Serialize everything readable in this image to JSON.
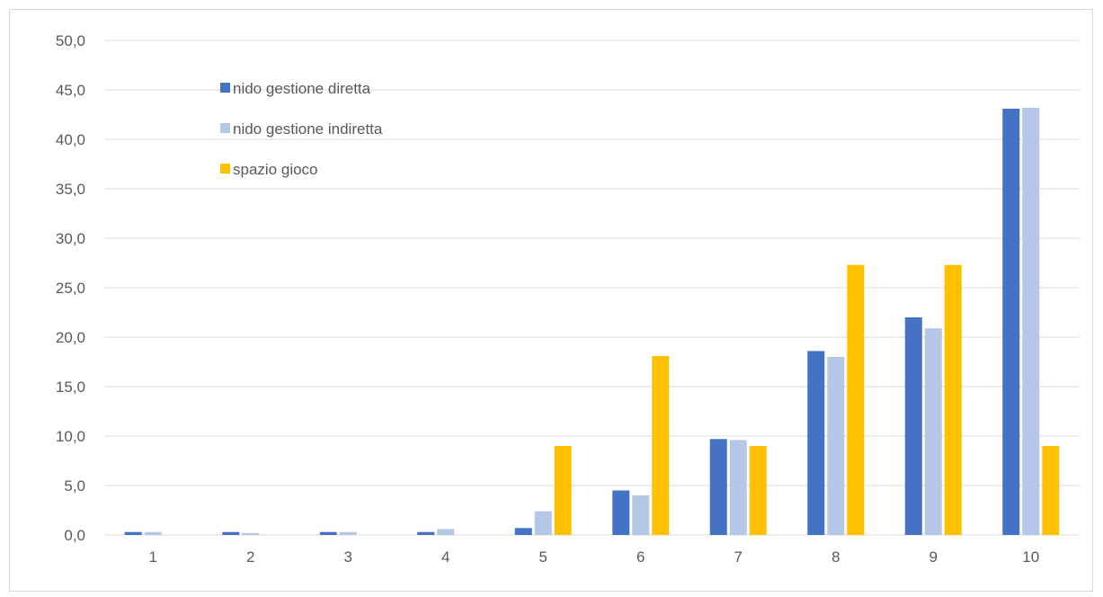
{
  "chart_data": {
    "type": "bar",
    "title": "",
    "xlabel": "",
    "ylabel": "",
    "categories": [
      "1",
      "2",
      "3",
      "4",
      "5",
      "6",
      "7",
      "8",
      "9",
      "10"
    ],
    "ylim": [
      0,
      50
    ],
    "yticks": [
      "0,0",
      "5,0",
      "10,0",
      "15,0",
      "20,0",
      "25,0",
      "30,0",
      "35,0",
      "40,0",
      "45,0",
      "50,0"
    ],
    "grid": true,
    "legend_position": "top-left",
    "series": [
      {
        "name": "nido gestione diretta",
        "color": "#4472c4",
        "values": [
          0.3,
          0.3,
          0.3,
          0.3,
          0.7,
          4.5,
          9.7,
          18.6,
          22.0,
          43.1
        ]
      },
      {
        "name": "nido gestione indiretta",
        "color": "#b4c7e7",
        "values": [
          0.3,
          0.2,
          0.3,
          0.6,
          2.4,
          4.0,
          9.6,
          18.0,
          20.9,
          43.2
        ]
      },
      {
        "name": "spazio gioco",
        "color": "#ffc000",
        "values": [
          0.0,
          0.0,
          0.0,
          0.0,
          9.0,
          18.1,
          9.0,
          27.3,
          27.3,
          9.0
        ]
      }
    ]
  }
}
